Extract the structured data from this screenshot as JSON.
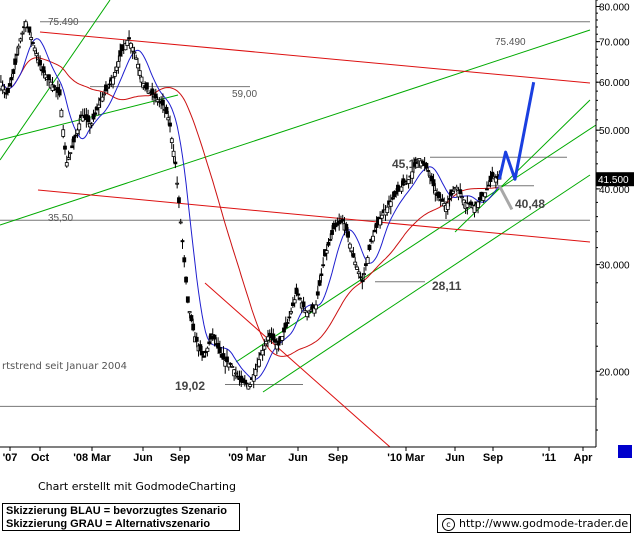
{
  "chart_data": {
    "type": "candlestick",
    "y_scale": "log",
    "ylim": [
      15000,
      82000
    ],
    "y_ticks": [
      {
        "value": 80000,
        "label": "80.000"
      },
      {
        "value": 70000,
        "label": "70.000"
      },
      {
        "value": 60000,
        "label": "60.000"
      },
      {
        "value": 50000,
        "label": "50.000"
      },
      {
        "value": 40000,
        "label": "40.000"
      },
      {
        "value": 30000,
        "label": "30.000"
      },
      {
        "value": 20000,
        "label": "20.000"
      }
    ],
    "x_range": [
      "2007-08-25",
      "2011-04-25"
    ],
    "x_ticks": [
      {
        "date": "2007-08-01",
        "label": "'07"
      },
      {
        "date": "2007-10-01",
        "label": "Oct"
      },
      {
        "date": "2008-01-01",
        "label": "'08 Mar"
      },
      {
        "date": "2008-06-01",
        "label": "Jun"
      },
      {
        "date": "2008-09-01",
        "label": "Sep"
      },
      {
        "date": "2009-01-01",
        "label": "'09 Mar"
      },
      {
        "date": "2009-06-01",
        "label": "Jun"
      },
      {
        "date": "2009-09-01",
        "label": "Sep"
      },
      {
        "date": "2010-01-01",
        "label": "'10 Mar"
      },
      {
        "date": "2010-06-01",
        "label": "Jun"
      },
      {
        "date": "2010-09-01",
        "label": "Sep"
      },
      {
        "date": "2011-01-01",
        "label": "'11"
      },
      {
        "date": "2011-04-01",
        "label": "Apr"
      }
    ],
    "price_path": [
      [
        "2007-08-27",
        60000
      ],
      [
        "2007-09-10",
        57000
      ],
      [
        "2007-09-24",
        62000
      ],
      [
        "2007-10-08",
        70000
      ],
      [
        "2007-10-22",
        75490
      ],
      [
        "2007-11-12",
        68000
      ],
      [
        "2007-11-26",
        63000
      ],
      [
        "2007-12-17",
        60000
      ],
      [
        "2008-01-07",
        57000
      ],
      [
        "2008-01-21",
        44000
      ],
      [
        "2008-02-04",
        47000
      ],
      [
        "2008-02-25",
        53000
      ],
      [
        "2008-03-17",
        51000
      ],
      [
        "2008-04-07",
        56000
      ],
      [
        "2008-05-05",
        61000
      ],
      [
        "2008-05-26",
        68000
      ],
      [
        "2008-06-09",
        71000
      ],
      [
        "2008-06-23",
        67000
      ],
      [
        "2008-07-14",
        59000
      ],
      [
        "2008-08-04",
        57000
      ],
      [
        "2008-08-25",
        55000
      ],
      [
        "2008-09-08",
        52000
      ],
      [
        "2008-09-22",
        44000
      ],
      [
        "2008-10-06",
        34000
      ],
      [
        "2008-10-20",
        26000
      ],
      [
        "2008-11-03",
        23000
      ],
      [
        "2008-11-24",
        21000
      ],
      [
        "2008-12-15",
        23000
      ],
      [
        "2009-01-05",
        21000
      ],
      [
        "2009-01-26",
        20500
      ],
      [
        "2009-02-16",
        19200
      ],
      [
        "2009-03-09",
        19020
      ],
      [
        "2009-03-30",
        21000
      ],
      [
        "2009-04-20",
        23000
      ],
      [
        "2009-05-11",
        22000
      ],
      [
        "2009-06-01",
        24000
      ],
      [
        "2009-06-22",
        27000
      ],
      [
        "2009-07-13",
        25000
      ],
      [
        "2009-08-03",
        25500
      ],
      [
        "2009-08-24",
        31000
      ],
      [
        "2009-09-14",
        34500
      ],
      [
        "2009-10-05",
        35500
      ],
      [
        "2009-10-26",
        31000
      ],
      [
        "2009-11-16",
        28110
      ],
      [
        "2009-12-07",
        33000
      ],
      [
        "2009-12-28",
        36000
      ],
      [
        "2010-01-18",
        38000
      ],
      [
        "2010-02-08",
        40000
      ],
      [
        "2010-03-01",
        41500
      ],
      [
        "2010-03-22",
        45110
      ],
      [
        "2010-04-12",
        43000
      ],
      [
        "2010-05-03",
        39000
      ],
      [
        "2010-05-24",
        37500
      ],
      [
        "2010-06-14",
        40500
      ],
      [
        "2010-07-05",
        38000
      ],
      [
        "2010-07-26",
        37500
      ],
      [
        "2010-08-16",
        39000
      ],
      [
        "2010-09-06",
        42000
      ],
      [
        "2010-09-20",
        41500
      ]
    ],
    "last_price": {
      "value": 41500,
      "label": "41.500"
    },
    "reference_lines": [
      {
        "value": 75490,
        "label": "75.490"
      },
      {
        "value": 59000,
        "label": "59,00"
      },
      {
        "value": 45110,
        "label": "45,11"
      },
      {
        "value": 40480,
        "label": "40,48"
      },
      {
        "value": 35500,
        "label": "35,50"
      },
      {
        "value": 28110,
        "label": "28,11"
      },
      {
        "value": 19020,
        "label": "19,02"
      },
      {
        "value": 17500,
        "label": ""
      }
    ],
    "scenarios": {
      "blue": [
        [
          "2010-09-20",
          41500
        ],
        [
          "2010-10-04",
          46000
        ],
        [
          "2010-10-25",
          41500
        ],
        [
          "2010-12-06",
          60000
        ]
      ],
      "gray": [
        [
          "2010-09-20",
          40480
        ],
        [
          "2010-10-18",
          37000
        ]
      ]
    },
    "annotations": [
      {
        "text": "rtstrend seit Januar 2004"
      }
    ],
    "colors": {
      "candles": "#000000",
      "ma_blue": "#1f1fcf",
      "ma_red": "#cc1111",
      "channel": "#00aa00",
      "trend_red": "#dd1111",
      "scenario_blue": "#1a3fe0",
      "scenario_gray": "#a8a8a8"
    }
  },
  "footer": {
    "credit": "Chart erstellt mit GodmodeCharting",
    "legend_blue": "Skizzierung BLAU = bevorzugtes Szenario",
    "legend_gray": "Skizzierung GRAU = Alternativszenario",
    "url_symbol": "c",
    "url": "http://www.godmode-trader.de"
  }
}
